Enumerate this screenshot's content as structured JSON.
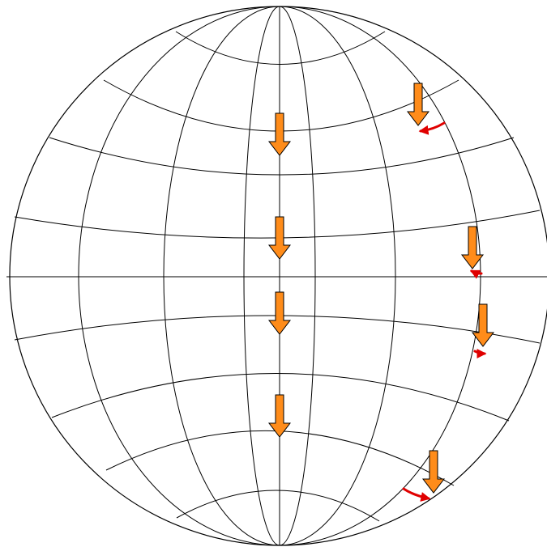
{
  "colors": {
    "arrow_fill": "#ff8c1a",
    "arrow_stroke": "#000000",
    "curl": "#e00000",
    "grid": "#000000",
    "background": "#ffffff"
  },
  "globe": {
    "meridians": 8,
    "parallels": 5
  },
  "arrows": [
    {
      "id": "center-1",
      "direction": "down",
      "curl": "none"
    },
    {
      "id": "center-2",
      "direction": "down",
      "curl": "none"
    },
    {
      "id": "center-3",
      "direction": "down",
      "curl": "none"
    },
    {
      "id": "center-4",
      "direction": "down",
      "curl": "none"
    },
    {
      "id": "edge-1",
      "direction": "down",
      "curl": "counterclockwise"
    },
    {
      "id": "edge-2",
      "direction": "down",
      "curl": "counterclockwise"
    },
    {
      "id": "edge-3",
      "direction": "down",
      "curl": "clockwise"
    },
    {
      "id": "edge-4",
      "direction": "down",
      "curl": "clockwise"
    }
  ]
}
